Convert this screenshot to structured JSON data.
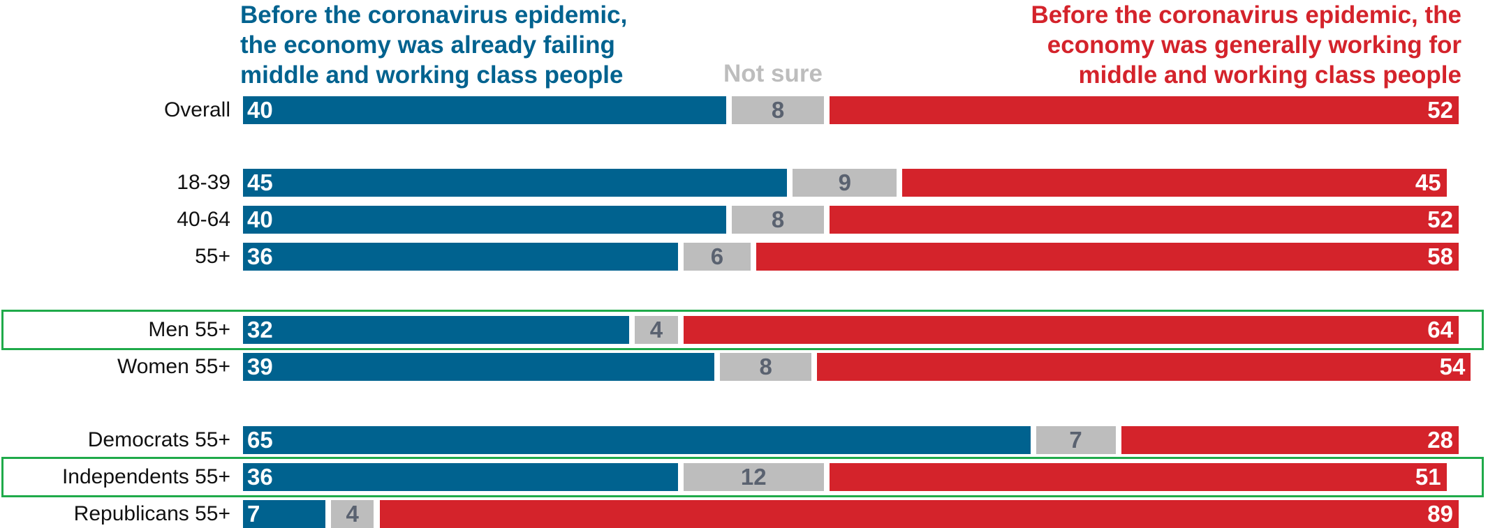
{
  "chart_data": {
    "type": "stacked-bar-horizontal",
    "categories": [
      "Overall",
      "18-39",
      "40-64",
      "55+",
      "Men 55+",
      "Women 55+",
      "Democrats 55+",
      "Independents 55+",
      "Republicans  55+"
    ],
    "series": [
      {
        "name": "Before the coronavirus epidemic, the economy was already failing middle and working class people",
        "color": "#00628f",
        "values": [
          40,
          45,
          40,
          36,
          32,
          39,
          65,
          36,
          7
        ]
      },
      {
        "name": "Not sure",
        "color": "#bdbdbd",
        "values": [
          8,
          9,
          8,
          6,
          4,
          8,
          7,
          12,
          4
        ]
      },
      {
        "name": "Before the coronavirus epidemic, the economy was generally working for middle and working class people",
        "color": "#d4232b",
        "values": [
          52,
          45,
          52,
          58,
          64,
          54,
          28,
          51,
          89
        ]
      }
    ],
    "xlim": [
      0,
      100
    ]
  }
}
